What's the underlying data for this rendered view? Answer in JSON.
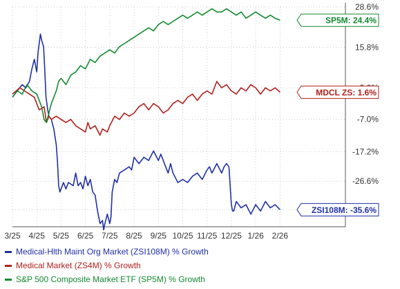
{
  "colors": {
    "zsi": "#1f2fa8",
    "zs4m": "#b0201c",
    "sp5m": "#128a2f",
    "grid": "#cccccc",
    "axis": "#555555"
  },
  "chart_data": {
    "type": "line",
    "xlabel": "",
    "ylabel": "",
    "x_tick_labels": [
      "3/25",
      "4/25",
      "5/25",
      "6/25",
      "7/25",
      "8/25",
      "9/25",
      "10/25",
      "11/25",
      "12/25",
      "1/26",
      "2/26"
    ],
    "y_tick_labels": [
      "28.6%",
      "15.8%",
      "3.0%",
      "-7.0%",
      "-17.2%",
      "-26.6%",
      "-35.6%"
    ],
    "y_ticks": [
      28.6,
      15.8,
      3.0,
      -7.0,
      -17.2,
      -26.6,
      -35.6
    ],
    "ylim": [
      -41,
      28.6
    ],
    "x_range": [
      0,
      11.7
    ],
    "grid": true,
    "series": [
      {
        "name": "Medical-Hlth Maint Org Market (ZSI108M) % Growth",
        "key": "zsi",
        "end_label": "ZSI108M: -35.6%",
        "points": [
          [
            0,
            0
          ],
          [
            0.2,
            2
          ],
          [
            0.4,
            4
          ],
          [
            0.55,
            3
          ],
          [
            0.7,
            5
          ],
          [
            0.8,
            9
          ],
          [
            0.9,
            12
          ],
          [
            1.0,
            8
          ],
          [
            1.05,
            14
          ],
          [
            1.1,
            17
          ],
          [
            1.15,
            20
          ],
          [
            1.2,
            18
          ],
          [
            1.28,
            16
          ],
          [
            1.32,
            10
          ],
          [
            1.38,
            0
          ],
          [
            1.45,
            -4
          ],
          [
            1.5,
            -6
          ],
          [
            1.6,
            -7
          ],
          [
            1.7,
            -10
          ],
          [
            1.8,
            -15
          ],
          [
            1.85,
            -20
          ],
          [
            1.9,
            -28
          ],
          [
            1.95,
            -30
          ],
          [
            2.1,
            -27
          ],
          [
            2.2,
            -29
          ],
          [
            2.3,
            -27
          ],
          [
            2.5,
            -28
          ],
          [
            2.6,
            -24
          ],
          [
            2.7,
            -28
          ],
          [
            2.8,
            -27
          ],
          [
            2.9,
            -29
          ],
          [
            3.0,
            -25
          ],
          [
            3.1,
            -28
          ],
          [
            3.2,
            -26
          ],
          [
            3.3,
            -30
          ],
          [
            3.4,
            -31
          ],
          [
            3.5,
            -36
          ],
          [
            3.6,
            -40
          ],
          [
            3.7,
            -39
          ],
          [
            3.75,
            -42
          ],
          [
            3.8,
            -40
          ],
          [
            3.9,
            -37
          ],
          [
            4.0,
            -40
          ],
          [
            4.05,
            -38
          ],
          [
            4.1,
            -30
          ],
          [
            4.2,
            -26
          ],
          [
            4.3,
            -27
          ],
          [
            4.4,
            -24
          ],
          [
            4.6,
            -23
          ],
          [
            4.8,
            -22
          ],
          [
            4.9,
            -23
          ],
          [
            5.0,
            -19
          ],
          [
            5.2,
            -21
          ],
          [
            5.4,
            -19
          ],
          [
            5.6,
            -20
          ],
          [
            5.8,
            -17
          ],
          [
            6.0,
            -20
          ],
          [
            6.1,
            -18
          ],
          [
            6.2,
            -20
          ],
          [
            6.3,
            -22
          ],
          [
            6.4,
            -24
          ],
          [
            6.5,
            -21
          ],
          [
            6.6,
            -24
          ],
          [
            6.8,
            -27
          ],
          [
            7.0,
            -26
          ],
          [
            7.2,
            -27
          ],
          [
            7.4,
            -25
          ],
          [
            7.6,
            -24
          ],
          [
            7.8,
            -26
          ],
          [
            8.0,
            -23
          ],
          [
            8.1,
            -22
          ],
          [
            8.2,
            -24
          ],
          [
            8.4,
            -21
          ],
          [
            8.6,
            -24
          ],
          [
            8.7,
            -22
          ],
          [
            8.8,
            -21
          ],
          [
            8.9,
            -22
          ],
          [
            9.0,
            -34
          ],
          [
            9.05,
            -36
          ],
          [
            9.1,
            -36
          ],
          [
            9.2,
            -33
          ],
          [
            9.4,
            -35
          ],
          [
            9.6,
            -34
          ],
          [
            9.8,
            -37
          ],
          [
            10.0,
            -34
          ],
          [
            10.2,
            -36
          ],
          [
            10.4,
            -33
          ],
          [
            10.6,
            -35
          ],
          [
            10.8,
            -34
          ],
          [
            11.0,
            -35.6
          ]
        ]
      },
      {
        "name": "Medical Market (ZS4M) % Growth",
        "key": "zs4m",
        "end_label": "MDCL ZS: 1.6%",
        "points": [
          [
            0,
            1
          ],
          [
            0.3,
            3
          ],
          [
            0.5,
            2
          ],
          [
            0.7,
            1
          ],
          [
            0.9,
            0
          ],
          [
            1.1,
            -4
          ],
          [
            1.3,
            -3
          ],
          [
            1.4,
            -8
          ],
          [
            1.5,
            -6
          ],
          [
            1.6,
            -7
          ],
          [
            1.8,
            -6
          ],
          [
            2.0,
            -7
          ],
          [
            2.2,
            -8
          ],
          [
            2.4,
            -7
          ],
          [
            2.6,
            -9
          ],
          [
            2.8,
            -10
          ],
          [
            3.0,
            -11
          ],
          [
            3.1,
            -8
          ],
          [
            3.2,
            -10
          ],
          [
            3.4,
            -9
          ],
          [
            3.6,
            -12
          ],
          [
            3.7,
            -10
          ],
          [
            3.9,
            -11
          ],
          [
            4.0,
            -9
          ],
          [
            4.2,
            -6
          ],
          [
            4.4,
            -7
          ],
          [
            4.6,
            -5
          ],
          [
            4.8,
            -6
          ],
          [
            5.0,
            -5
          ],
          [
            5.2,
            -3
          ],
          [
            5.4,
            -2
          ],
          [
            5.6,
            -4
          ],
          [
            5.8,
            -2
          ],
          [
            6.0,
            -3
          ],
          [
            6.2,
            -5
          ],
          [
            6.4,
            -4
          ],
          [
            6.6,
            -2
          ],
          [
            6.8,
            -1
          ],
          [
            7.0,
            -2
          ],
          [
            7.2,
            0
          ],
          [
            7.4,
            1
          ],
          [
            7.6,
            -1
          ],
          [
            7.8,
            1
          ],
          [
            8.0,
            2
          ],
          [
            8.2,
            1
          ],
          [
            8.4,
            5
          ],
          [
            8.6,
            3
          ],
          [
            8.8,
            4
          ],
          [
            9.0,
            2
          ],
          [
            9.2,
            1
          ],
          [
            9.4,
            3
          ],
          [
            9.6,
            2
          ],
          [
            9.8,
            4
          ],
          [
            10.0,
            3
          ],
          [
            10.2,
            1
          ],
          [
            10.4,
            3
          ],
          [
            10.6,
            2
          ],
          [
            10.8,
            3
          ],
          [
            11.0,
            1.6
          ]
        ]
      },
      {
        "name": "S&P 500 Composite Market ETF (SP5M) % Growth",
        "key": "sp5m",
        "end_label": "SP5M: 24.4%",
        "points": [
          [
            0,
            0
          ],
          [
            0.2,
            2
          ],
          [
            0.4,
            1
          ],
          [
            0.6,
            4
          ],
          [
            0.8,
            2
          ],
          [
            1.0,
            1
          ],
          [
            1.2,
            -3
          ],
          [
            1.3,
            -7
          ],
          [
            1.4,
            -8
          ],
          [
            1.5,
            -5
          ],
          [
            1.6,
            -2
          ],
          [
            1.7,
            0
          ],
          [
            1.8,
            2
          ],
          [
            1.9,
            5
          ],
          [
            2.0,
            6
          ],
          [
            2.2,
            4
          ],
          [
            2.4,
            7
          ],
          [
            2.6,
            8
          ],
          [
            2.8,
            10
          ],
          [
            3.0,
            9
          ],
          [
            3.2,
            12
          ],
          [
            3.4,
            11
          ],
          [
            3.6,
            13
          ],
          [
            3.8,
            14
          ],
          [
            4.0,
            15
          ],
          [
            4.2,
            14
          ],
          [
            4.4,
            16
          ],
          [
            4.6,
            17
          ],
          [
            4.8,
            18
          ],
          [
            5.0,
            19
          ],
          [
            5.2,
            20
          ],
          [
            5.4,
            21
          ],
          [
            5.6,
            22
          ],
          [
            5.8,
            21
          ],
          [
            6.0,
            23
          ],
          [
            6.2,
            24
          ],
          [
            6.4,
            23
          ],
          [
            6.6,
            24
          ],
          [
            6.8,
            25
          ],
          [
            7.0,
            26
          ],
          [
            7.2,
            25
          ],
          [
            7.4,
            26
          ],
          [
            7.6,
            27
          ],
          [
            7.8,
            26
          ],
          [
            8.0,
            27
          ],
          [
            8.2,
            28
          ],
          [
            8.4,
            27
          ],
          [
            8.6,
            27
          ],
          [
            8.8,
            28
          ],
          [
            9.0,
            27
          ],
          [
            9.2,
            26
          ],
          [
            9.4,
            27
          ],
          [
            9.6,
            25
          ],
          [
            9.8,
            26
          ],
          [
            10.0,
            27
          ],
          [
            10.2,
            26
          ],
          [
            10.4,
            25
          ],
          [
            10.6,
            26
          ],
          [
            10.8,
            25
          ],
          [
            11.0,
            24.4
          ]
        ]
      }
    ]
  }
}
